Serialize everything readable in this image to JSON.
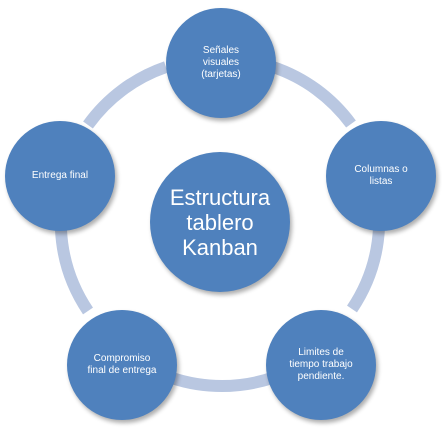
{
  "colors": {
    "node": "#4f81bd",
    "connector": "#b9c7e1",
    "text": "#ffffff"
  },
  "center": {
    "label": "Estructura tablero Kanban"
  },
  "cycle": [
    {
      "label": "Señales visuales (tarjetas)"
    },
    {
      "label": "Columnas o listas"
    },
    {
      "label": "Limites de tiempo trabajo pendiente."
    },
    {
      "label": "Compromiso final de entrega"
    },
    {
      "label": "Entrega final"
    }
  ]
}
